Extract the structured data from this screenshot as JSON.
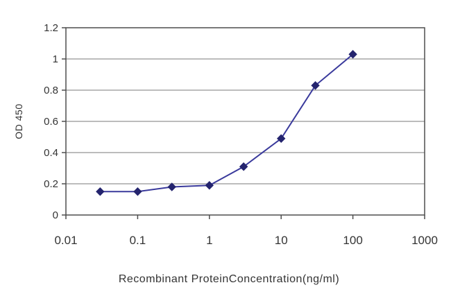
{
  "chart_data": {
    "type": "line",
    "title": "",
    "xlabel": "Recombinant ProteinConcentration(ng/ml)",
    "ylabel": "OD 450",
    "xscale": "log",
    "xlim": [
      0.01,
      1000
    ],
    "ylim": [
      0,
      1.2
    ],
    "xticks": [
      "0.01",
      "0.1",
      "1",
      "10",
      "100",
      "1000"
    ],
    "yticks": [
      "0",
      "0.2",
      "0.4",
      "0.6",
      "0.8",
      "1",
      "1.2"
    ],
    "grid": "horizontal",
    "legend": "none",
    "marker": "diamond",
    "x": [
      0.03,
      0.1,
      0.3,
      1,
      3,
      10,
      30,
      100
    ],
    "y": [
      0.15,
      0.15,
      0.18,
      0.19,
      0.31,
      0.49,
      0.83,
      1.03
    ],
    "colors": {
      "line": "#3a3a9c",
      "marker": "#24246e",
      "grid": "#7a7a7a",
      "axis": "#4d4d4d",
      "text": "#333333",
      "background": "#ffffff"
    }
  }
}
